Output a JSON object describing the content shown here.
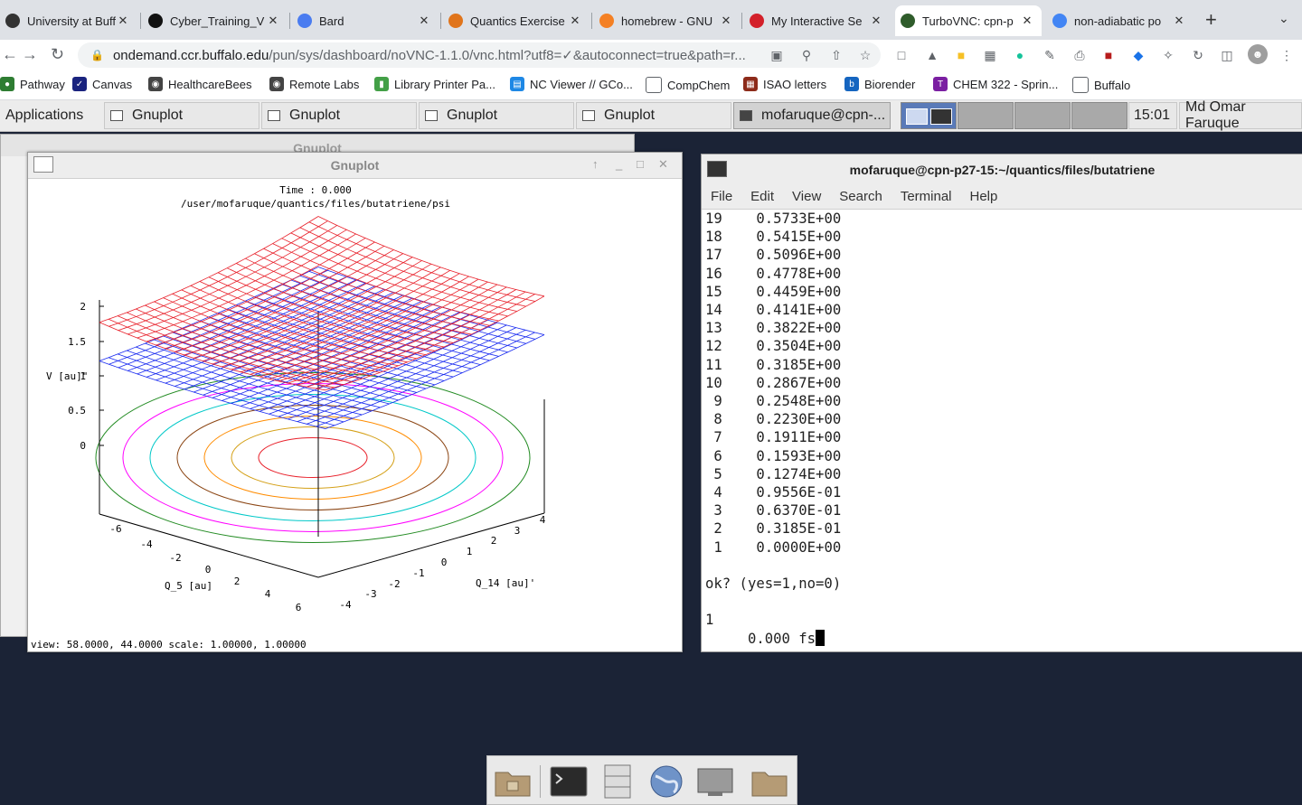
{
  "browser": {
    "tabs": [
      {
        "title": "University at Buff",
        "active": false,
        "icon": "university-favicon"
      },
      {
        "title": "Cyber_Training_V",
        "active": false,
        "icon": "github-favicon"
      },
      {
        "title": "Bard",
        "active": false,
        "icon": "bard-favicon"
      },
      {
        "title": "Quantics Exercise",
        "active": false,
        "icon": "quantics-favicon"
      },
      {
        "title": "homebrew - GNU",
        "active": false,
        "icon": "stackoverflow-favicon"
      },
      {
        "title": "My Interactive Se",
        "active": false,
        "icon": "opera-favicon"
      },
      {
        "title": "TurboVNC: cpn-p",
        "active": true,
        "icon": "vnc-favicon"
      },
      {
        "title": "non-adiabatic po",
        "active": false,
        "icon": "google-favicon"
      }
    ],
    "url_host": "ondemand.ccr.buffalo.edu",
    "url_path": "/pun/sys/dashboard/noVNC-1.1.0/vnc.html?utf8=✓&autoconnect=true&path=r...",
    "bookmarks": [
      "Pathway",
      "Canvas",
      "HealthcareBees",
      "Remote Labs",
      "Library Printer Pa...",
      "NC Viewer // GCo...",
      "CompChem",
      "ISAO letters",
      "Biorender",
      "CHEM 322 - Sprin...",
      "Buffalo"
    ]
  },
  "panel": {
    "applications": "Applications",
    "tasks": [
      "Gnuplot",
      "Gnuplot",
      "Gnuplot",
      "Gnuplot",
      "mofaruque@cpn-..."
    ],
    "clock": "15:01",
    "user": "Md Omar Faruque"
  },
  "bg_window_title": "Gnuplot",
  "gnuplot": {
    "title": "Gnuplot",
    "header_line1": "Time :     0.000",
    "header_line2": "/user/mofaruque/quantics/files/butatriene/psi",
    "status": "view:  58.0000,  44.0000   scale:  1.00000,  1.00000"
  },
  "chart_data": {
    "type": "surface",
    "zlabel": "V [au]\"",
    "xlabel": "Q_5 [au]",
    "ylabel": "Q_14 [au]'",
    "z_ticks": [
      "2",
      "1.5",
      "1",
      "0.5",
      "0"
    ],
    "x_ticks": [
      "-6",
      "-4",
      "-2",
      "0",
      "2",
      "4",
      "6"
    ],
    "y_ticks": [
      "-4",
      "-3",
      "-2",
      "-1",
      "0",
      "1",
      "2",
      "3",
      "4"
    ],
    "series": [
      {
        "name": "upper surface",
        "color": "#e8202a"
      },
      {
        "name": "lower surface",
        "color": "#1a2bf0"
      }
    ],
    "contour_colors": [
      "#e8202a",
      "#d4a017",
      "#ff8c00",
      "#8b4513",
      "#00c8c8",
      "#ff00ff",
      "#228b22"
    ]
  },
  "terminal": {
    "title": "mofaruque@cpn-p27-15:~/quantics/files/butatriene",
    "menu": [
      "File",
      "Edit",
      "View",
      "Search",
      "Terminal",
      "Help"
    ],
    "rows": [
      {
        "n": "19",
        "v": "0.5733E+00"
      },
      {
        "n": "18",
        "v": "0.5415E+00"
      },
      {
        "n": "17",
        "v": "0.5096E+00"
      },
      {
        "n": "16",
        "v": "0.4778E+00"
      },
      {
        "n": "15",
        "v": "0.4459E+00"
      },
      {
        "n": "14",
        "v": "0.4141E+00"
      },
      {
        "n": "13",
        "v": "0.3822E+00"
      },
      {
        "n": "12",
        "v": "0.3504E+00"
      },
      {
        "n": "11",
        "v": "0.3185E+00"
      },
      {
        "n": "10",
        "v": "0.2867E+00"
      },
      {
        "n": " 9",
        "v": "0.2548E+00"
      },
      {
        "n": " 8",
        "v": "0.2230E+00"
      },
      {
        "n": " 7",
        "v": "0.1911E+00"
      },
      {
        "n": " 6",
        "v": "0.1593E+00"
      },
      {
        "n": " 5",
        "v": "0.1274E+00"
      },
      {
        "n": " 4",
        "v": "0.9556E-01"
      },
      {
        "n": " 3",
        "v": "0.6370E-01"
      },
      {
        "n": " 2",
        "v": "0.3185E-01"
      },
      {
        "n": " 1",
        "v": "0.0000E+00"
      }
    ],
    "prompt": "ok? (yes=1,no=0)",
    "input": "1",
    "output": "     0.000 fs"
  }
}
